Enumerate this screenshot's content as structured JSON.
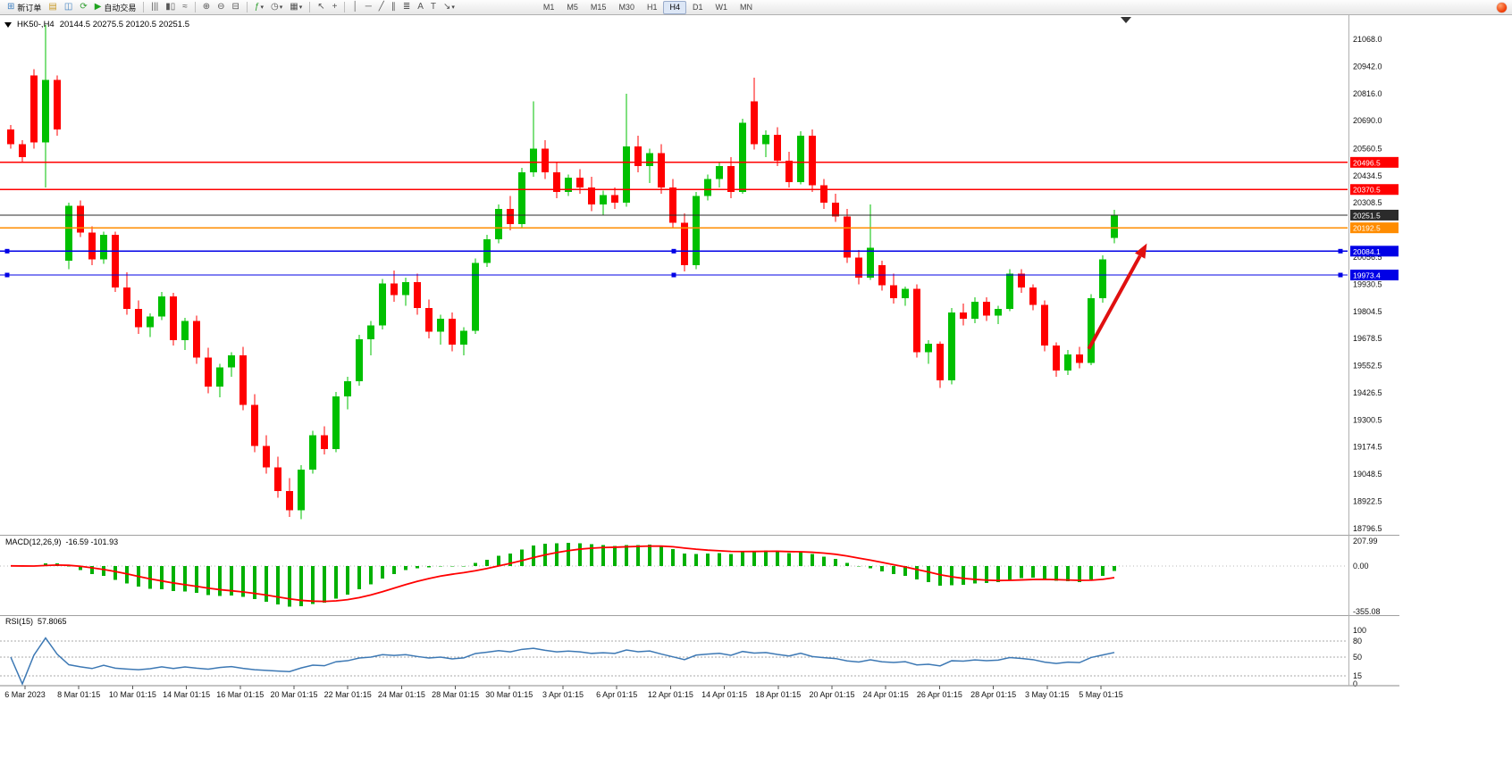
{
  "toolbar": {
    "caret_glyph": "▾",
    "items": [
      {
        "name": "new-order",
        "glyph": "⊞",
        "color": "#3f7fbf",
        "label": "新订单"
      },
      {
        "name": "market-watch",
        "glyph": "▤",
        "color": "#c99a2a"
      },
      {
        "name": "data-window",
        "glyph": "◫",
        "color": "#3f7fbf"
      },
      {
        "name": "refresh",
        "glyph": "⟳",
        "color": "#2f9e2f"
      },
      {
        "name": "auto-trading",
        "glyph": "▶",
        "color": "#1fa31f",
        "label": "自动交易"
      },
      {
        "sep": true
      },
      {
        "name": "bar-chart",
        "glyph": "|||"
      },
      {
        "name": "candlestick-chart",
        "glyph": "▮▯"
      },
      {
        "name": "line-chart",
        "glyph": "≈"
      },
      {
        "sep": true
      },
      {
        "name": "zoom-in",
        "glyph": "⊕"
      },
      {
        "name": "zoom-out",
        "glyph": "⊖"
      },
      {
        "name": "tile-windows",
        "glyph": "⊟"
      },
      {
        "sep": true
      },
      {
        "name": "indicators",
        "glyph": "ƒ",
        "color": "#2f9e2f",
        "caret": true
      },
      {
        "name": "periods",
        "glyph": "◷",
        "caret": true
      },
      {
        "name": "templates",
        "glyph": "▦",
        "caret": true
      },
      {
        "sep": true
      },
      {
        "name": "cursor",
        "glyph": "↖"
      },
      {
        "name": "crosshair",
        "glyph": "+"
      },
      {
        "sep": true
      },
      {
        "name": "vertical-line",
        "glyph": "│"
      },
      {
        "name": "horizontal-line",
        "glyph": "─"
      },
      {
        "name": "trendline",
        "glyph": "╱"
      },
      {
        "name": "channel",
        "glyph": "∥"
      },
      {
        "name": "fibonacci",
        "glyph": "≣"
      },
      {
        "name": "text",
        "glyph": "A"
      },
      {
        "name": "text-label",
        "glyph": "T"
      },
      {
        "name": "arrows",
        "glyph": "↘",
        "caret": true
      }
    ],
    "timeframes": [
      "M1",
      "M5",
      "M15",
      "M30",
      "H1",
      "H4",
      "D1",
      "W1",
      "MN"
    ],
    "active_timeframe": "H4"
  },
  "chart": {
    "title": "HK50-,H4",
    "ohlc": "20144.5 20275.5 20120.5 20251.5",
    "price_scale": [
      "21068.0",
      "20942.0",
      "20816.0",
      "20690.0",
      "20560.5",
      "20434.5",
      "20308.5",
      "20182.5",
      "20056.5",
      "19930.5",
      "19804.5",
      "19678.5",
      "19552.5",
      "19426.5",
      "19300.5",
      "19174.5",
      "19048.5",
      "18922.5",
      "18796.5"
    ],
    "time_scale": [
      "6 Mar 2023",
      "8 Mar 01:15",
      "10 Mar 01:15",
      "14 Mar 01:15",
      "16 Mar 01:15",
      "20 Mar 01:15",
      "22 Mar 01:15",
      "24 Mar 01:15",
      "28 Mar 01:15",
      "30 Mar 01:15",
      "3 Apr 01:15",
      "6 Apr 01:15",
      "12 Apr 01:15",
      "14 Apr 01:15",
      "18 Apr 01:15",
      "20 Apr 01:15",
      "24 Apr 01:15",
      "26 Apr 01:15",
      "28 Apr 01:15",
      "3 May 01:15",
      "5 May 01:15"
    ],
    "hlines": [
      {
        "price": 20496.5,
        "tag": "20496.5",
        "color": "#ff0000",
        "width": 1.4
      },
      {
        "price": 20370.5,
        "tag": "20370.5",
        "color": "#ff0000",
        "width": 1.4
      },
      {
        "price": 20251.5,
        "tag": "20251.5",
        "color": "#2b2b2b",
        "width": 1.1
      },
      {
        "price": 20192.5,
        "tag": "20192.5",
        "color": "#ff8c00",
        "width": 1.4
      },
      {
        "price": 20084.1,
        "tag": "20084.1",
        "color": "#0000e6",
        "width": 1.4,
        "handles": true
      },
      {
        "price": 19973.4,
        "tag": "19973.4",
        "color": "#0000e6",
        "width": 1.4,
        "handles": true
      }
    ],
    "arrow": {
      "from_index": 92.8,
      "from_price": 19630,
      "to_index": 97.8,
      "to_price": 20120,
      "color": "#e01010"
    },
    "macd": {
      "name": "MACD(12,26,9)",
      "values": "-16.59 -101.93",
      "scale_labels": [
        "207.99",
        "0.00",
        "-355.08"
      ],
      "histogram_color": "#00b000",
      "signal_color": "#ff0000"
    },
    "rsi": {
      "name": "RSI(15)",
      "value": "57.8065",
      "scale_labels": [
        100,
        80,
        50,
        15,
        0
      ],
      "levels": [
        80,
        50,
        15
      ],
      "line_color": "#3c78b4"
    }
  },
  "chart_data": {
    "type": "candlestick",
    "symbol": "HK50-",
    "timeframe": "H4",
    "last_ohlc": {
      "open": 20144.5,
      "high": 20275.5,
      "low": 20120.5,
      "close": 20251.5
    },
    "up_color": "#00c000",
    "down_color": "#ff0000",
    "candles": [
      [
        20650,
        20670,
        20560,
        20580
      ],
      [
        20580,
        20600,
        20500,
        20520
      ],
      [
        20900,
        20930,
        20560,
        20590
      ],
      [
        20590,
        21134,
        20380,
        20880
      ],
      [
        20880,
        20900,
        20620,
        20650
      ],
      [
        20040,
        20310,
        20000,
        20295
      ],
      [
        20295,
        20320,
        20150,
        20170
      ],
      [
        20170,
        20200,
        20020,
        20045
      ],
      [
        20045,
        20175,
        20025,
        20160
      ],
      [
        20160,
        20175,
        19895,
        19915
      ],
      [
        19915,
        19985,
        19790,
        19815
      ],
      [
        19815,
        19855,
        19700,
        19730
      ],
      [
        19730,
        19795,
        19685,
        19780
      ],
      [
        19780,
        19895,
        19765,
        19875
      ],
      [
        19875,
        19890,
        19645,
        19670
      ],
      [
        19670,
        19775,
        19625,
        19760
      ],
      [
        19760,
        19785,
        19560,
        19590
      ],
      [
        19590,
        19635,
        19425,
        19455
      ],
      [
        19455,
        19560,
        19405,
        19545
      ],
      [
        19545,
        19615,
        19500,
        19600
      ],
      [
        19600,
        19640,
        19345,
        19370
      ],
      [
        19370,
        19420,
        19150,
        19180
      ],
      [
        19180,
        19230,
        19050,
        19080
      ],
      [
        19080,
        19130,
        18940,
        18970
      ],
      [
        18970,
        19030,
        18850,
        18880
      ],
      [
        18880,
        19090,
        18840,
        19070
      ],
      [
        19070,
        19250,
        19050,
        19230
      ],
      [
        19230,
        19270,
        19140,
        19165
      ],
      [
        19165,
        19430,
        19150,
        19410
      ],
      [
        19410,
        19500,
        19350,
        19480
      ],
      [
        19480,
        19695,
        19460,
        19675
      ],
      [
        19675,
        19760,
        19600,
        19740
      ],
      [
        19740,
        19955,
        19720,
        19935
      ],
      [
        19935,
        19995,
        19850,
        19880
      ],
      [
        19880,
        19960,
        19830,
        19940
      ],
      [
        19940,
        19980,
        19790,
        19820
      ],
      [
        19820,
        19860,
        19680,
        19710
      ],
      [
        19710,
        19790,
        19650,
        19770
      ],
      [
        19770,
        19800,
        19620,
        19650
      ],
      [
        19650,
        19730,
        19600,
        19715
      ],
      [
        19715,
        20050,
        19700,
        20030
      ],
      [
        20030,
        20160,
        20010,
        20140
      ],
      [
        20140,
        20300,
        20120,
        20280
      ],
      [
        20280,
        20340,
        20180,
        20210
      ],
      [
        20210,
        20470,
        20195,
        20450
      ],
      [
        20450,
        20780,
        20430,
        20560
      ],
      [
        20560,
        20600,
        20420,
        20450
      ],
      [
        20450,
        20500,
        20330,
        20360
      ],
      [
        20360,
        20440,
        20340,
        20425
      ],
      [
        20425,
        20465,
        20350,
        20380
      ],
      [
        20380,
        20430,
        20270,
        20300
      ],
      [
        20300,
        20365,
        20250,
        20345
      ],
      [
        20345,
        20380,
        20280,
        20310
      ],
      [
        20310,
        20815,
        20290,
        20570
      ],
      [
        20570,
        20620,
        20450,
        20480
      ],
      [
        20480,
        20560,
        20400,
        20540
      ],
      [
        20540,
        20580,
        20350,
        20380
      ],
      [
        20380,
        20420,
        20190,
        20215
      ],
      [
        20215,
        20260,
        19990,
        20020
      ],
      [
        20020,
        20360,
        20000,
        20340
      ],
      [
        20340,
        20440,
        20320,
        20420
      ],
      [
        20420,
        20500,
        20380,
        20480
      ],
      [
        20480,
        20520,
        20330,
        20360
      ],
      [
        20360,
        20700,
        20350,
        20680
      ],
      [
        20780,
        20890,
        20555,
        20580
      ],
      [
        20580,
        20645,
        20520,
        20625
      ],
      [
        20625,
        20660,
        20480,
        20505
      ],
      [
        20505,
        20545,
        20380,
        20405
      ],
      [
        20405,
        20640,
        20395,
        20620
      ],
      [
        20620,
        20650,
        20360,
        20390
      ],
      [
        20390,
        20420,
        20280,
        20310
      ],
      [
        20310,
        20350,
        20220,
        20245
      ],
      [
        20245,
        20280,
        20030,
        20055
      ],
      [
        20055,
        20090,
        19930,
        19960
      ],
      [
        19960,
        20300,
        19950,
        20100
      ],
      [
        20020,
        20040,
        19900,
        19925
      ],
      [
        19925,
        19980,
        19840,
        19865
      ],
      [
        19865,
        19920,
        19830,
        19910
      ],
      [
        19910,
        19930,
        19590,
        19615
      ],
      [
        19615,
        19670,
        19560,
        19655
      ],
      [
        19655,
        19665,
        19450,
        19485
      ],
      [
        19485,
        19820,
        19465,
        19800
      ],
      [
        19800,
        19840,
        19740,
        19770
      ],
      [
        19770,
        19870,
        19750,
        19850
      ],
      [
        19850,
        19870,
        19760,
        19785
      ],
      [
        19785,
        19830,
        19745,
        19815
      ],
      [
        19815,
        20000,
        19805,
        19980
      ],
      [
        19980,
        20000,
        19890,
        19915
      ],
      [
        19915,
        19930,
        19810,
        19835
      ],
      [
        19835,
        19855,
        19620,
        19645
      ],
      [
        19645,
        19660,
        19500,
        19530
      ],
      [
        19530,
        19625,
        19510,
        19605
      ],
      [
        19605,
        19640,
        19540,
        19565
      ],
      [
        19565,
        19885,
        19555,
        19865
      ],
      [
        19865,
        20065,
        19845,
        20045
      ],
      [
        20144.5,
        20275.5,
        20120.5,
        20251.5
      ]
    ]
  }
}
